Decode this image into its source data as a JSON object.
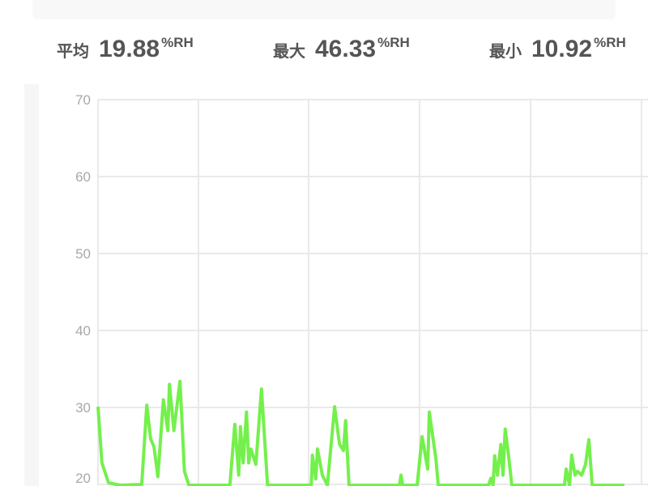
{
  "stats": [
    {
      "label": "平均",
      "value": "19.88",
      "unit": "%RH"
    },
    {
      "label": "最大",
      "value": "46.33",
      "unit": "%RH"
    },
    {
      "label": "最小",
      "value": "10.92",
      "unit": "%RH"
    }
  ],
  "chart_data": {
    "type": "line",
    "title": "",
    "xlabel": "",
    "ylabel": "",
    "ylim": [
      20,
      70
    ],
    "xlim": [
      0,
      100
    ],
    "yticks": [
      "20",
      "30",
      "40",
      "50",
      "60",
      "70"
    ],
    "grid": true,
    "color": "#74f04c",
    "series": [
      {
        "points": [
          [
            0,
            30.1
          ],
          [
            0.7,
            22.8
          ],
          [
            1.9,
            20.2
          ],
          [
            4,
            16
          ],
          [
            7.9,
            20
          ],
          [
            8.8,
            30.3
          ],
          [
            9.5,
            25.9
          ],
          [
            10.1,
            24.9
          ],
          [
            10.8,
            21
          ],
          [
            11.8,
            31
          ],
          [
            12.6,
            27
          ],
          [
            12.9,
            33
          ],
          [
            13.7,
            27
          ],
          [
            14.8,
            33.4
          ],
          [
            15.6,
            21.7
          ],
          [
            16.4,
            18
          ],
          [
            20,
            15
          ],
          [
            23.8,
            19
          ],
          [
            24.7,
            27.8
          ],
          [
            25.4,
            21.2
          ],
          [
            25.7,
            27.5
          ],
          [
            26.2,
            22.8
          ],
          [
            26.8,
            29.4
          ],
          [
            27.2,
            22.8
          ],
          [
            27.6,
            24.6
          ],
          [
            28.5,
            22.6
          ],
          [
            29.5,
            32.4
          ],
          [
            30.6,
            19
          ],
          [
            34,
            15
          ],
          [
            38.5,
            19
          ],
          [
            38.7,
            23.8
          ],
          [
            39.3,
            20.7
          ],
          [
            39.6,
            24.6
          ],
          [
            40.5,
            21.2
          ],
          [
            41.4,
            19.5
          ],
          [
            42.7,
            30.1
          ],
          [
            43.6,
            25.2
          ],
          [
            44.3,
            24.4
          ],
          [
            44.7,
            28.3
          ],
          [
            45.3,
            18
          ],
          [
            50,
            15
          ],
          [
            54.4,
            19
          ],
          [
            54.7,
            21.2
          ],
          [
            55,
            19
          ],
          [
            57.6,
            19.5
          ],
          [
            58.5,
            26.2
          ],
          [
            59.5,
            22
          ],
          [
            59.8,
            29.4
          ],
          [
            61,
            23.3
          ],
          [
            61.4,
            18
          ],
          [
            66,
            15
          ],
          [
            70.5,
            19.5
          ],
          [
            70.9,
            20.8
          ],
          [
            71.3,
            19.5
          ],
          [
            71.6,
            23.7
          ],
          [
            72.1,
            21.2
          ],
          [
            72.7,
            25.2
          ],
          [
            73.1,
            21.2
          ],
          [
            73.5,
            27.2
          ],
          [
            74.1,
            23.8
          ],
          [
            74.7,
            18
          ],
          [
            80,
            15
          ],
          [
            84.2,
            19.5
          ],
          [
            84.5,
            22
          ],
          [
            85.1,
            19.5
          ],
          [
            85.5,
            23.8
          ],
          [
            86.1,
            21.2
          ],
          [
            86.5,
            21.7
          ],
          [
            87.3,
            21.2
          ],
          [
            88,
            22.6
          ],
          [
            88.6,
            25.8
          ],
          [
            89.2,
            18
          ],
          [
            95,
            15
          ]
        ]
      }
    ]
  }
}
